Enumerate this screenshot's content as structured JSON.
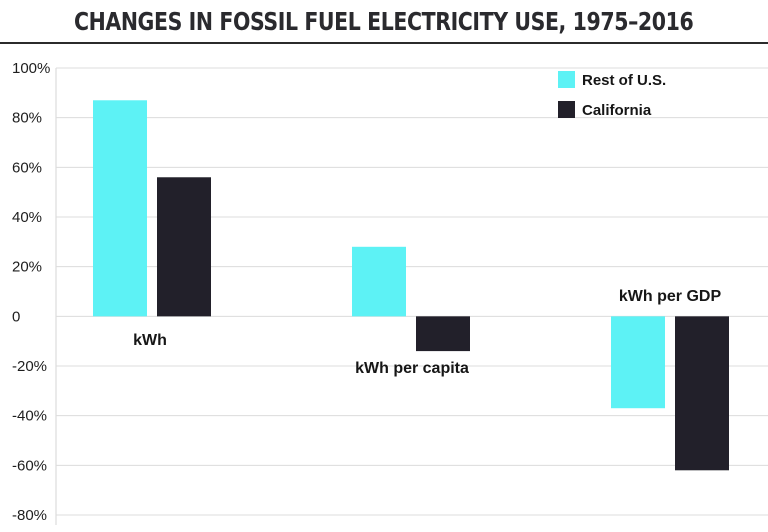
{
  "chart_data": {
    "type": "bar",
    "title": "CHANGES IN FOSSIL FUEL ELECTRICITY USE, 1975–2016",
    "categories": [
      "kWh",
      "kWh per capita",
      "kWh per GDP"
    ],
    "series": [
      {
        "name": "Rest of U.S.",
        "color": "#5df2f5",
        "values": [
          87,
          28,
          -37
        ]
      },
      {
        "name": "California",
        "color": "#22202a",
        "values": [
          56,
          -14,
          -62
        ]
      }
    ],
    "yticks": [
      {
        "value": 100,
        "label": "100%"
      },
      {
        "value": 80,
        "label": "80%"
      },
      {
        "value": 60,
        "label": "60%"
      },
      {
        "value": 40,
        "label": "40%"
      },
      {
        "value": 20,
        "label": "20%"
      },
      {
        "value": 0,
        "label": "0"
      },
      {
        "value": -20,
        "label": "-20%"
      },
      {
        "value": -40,
        "label": "-40%"
      },
      {
        "value": -60,
        "label": "-60%"
      },
      {
        "value": -80,
        "label": "-80%"
      }
    ],
    "ylim": [
      -80,
      100
    ],
    "grid": true,
    "legend_position": "top-right"
  }
}
